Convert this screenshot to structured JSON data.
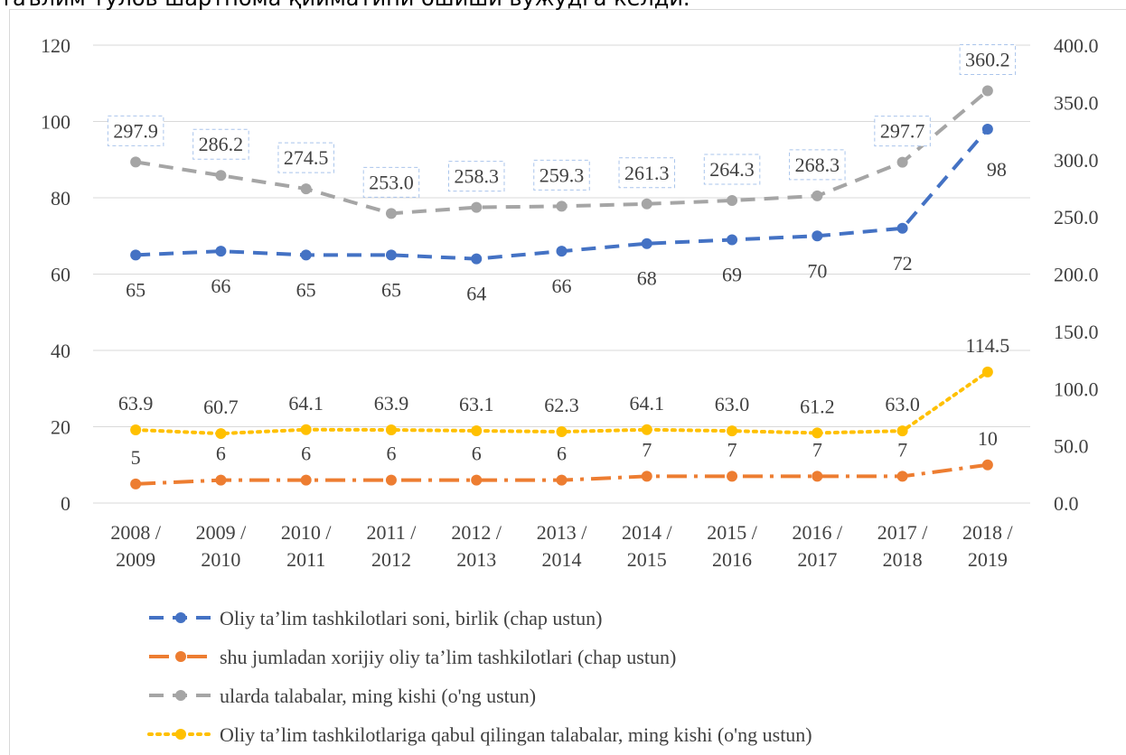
{
  "caption": "таълим тулов шартнома қийматини ошиши вужудга келди.",
  "chart_data": {
    "type": "line",
    "categories": [
      "2008 / 2009",
      "2009 / 2010",
      "2010 / 2011",
      "2011 / 2012",
      "2012 / 2013",
      "2013 / 2014",
      "2014 / 2015",
      "2015 / 2016",
      "2016 / 2017",
      "2017 / 2018",
      "2018 / 2019"
    ],
    "ylim": [
      0,
      120
    ],
    "yticks": [
      0,
      20,
      40,
      60,
      80,
      100,
      120
    ],
    "y2lim": [
      0,
      400
    ],
    "y2ticks": [
      {
        "value": 0,
        "label": "0.0"
      },
      {
        "value": 50,
        "label": "50.0"
      },
      {
        "value": 100,
        "label": "100.0"
      },
      {
        "value": 150,
        "label": "150.0"
      },
      {
        "value": 200,
        "label": "200.0"
      },
      {
        "value": 250,
        "label": "250.0"
      },
      {
        "value": 300,
        "label": "300.0"
      },
      {
        "value": 350,
        "label": "350.0"
      },
      {
        "value": 400,
        "label": "400.0"
      }
    ],
    "grid": true,
    "series": [
      {
        "name": "Oliy ta’lim tashkilotlari soni, birlik (chap ustun)",
        "color": "#4472c4",
        "dash": "dash",
        "label_pos": "below",
        "values": [
          65,
          66,
          65,
          65,
          64,
          66,
          68,
          69,
          70,
          72,
          98
        ]
      },
      {
        "name": "shu jumladan xorijiy oliy ta’lim tashkilotlari (chap ustun)",
        "color": "#ed7d31",
        "dash": "dashdot",
        "label_pos": "above",
        "values": [
          5,
          6,
          6,
          6,
          6,
          6,
          7,
          7,
          7,
          7,
          10
        ]
      },
      {
        "name": "ularda talabalar, ming kishi (o'ng ustun)",
        "color": "#a5a5a5",
        "dash": "dash",
        "label_pos": "above-box",
        "axis": "y2",
        "values": [
          297.9,
          286.2,
          274.5,
          253.0,
          258.3,
          259.3,
          261.3,
          264.3,
          268.3,
          297.7,
          360.2
        ],
        "value_labels": [
          "297.9",
          "286.2",
          "274.5",
          "253.0",
          "258.3",
          "259.3",
          "261.3",
          "264.3",
          "268.3",
          "297.7",
          "360.2"
        ]
      },
      {
        "name": "Oliy ta’lim tashkilotlariga qabul qilingan talabalar, ming kishi (o'ng ustun)",
        "color": "#ffc000",
        "dash": "dot",
        "label_pos": "above",
        "axis": "y2",
        "values": [
          63.9,
          60.7,
          64.1,
          63.9,
          63.1,
          62.3,
          64.1,
          63.0,
          61.2,
          63.0,
          114.5
        ],
        "value_labels": [
          "63.9",
          "60.7",
          "64.1",
          "63.9",
          "63.1",
          "62.3",
          "64.1",
          "63.0",
          "61.2",
          "63.0",
          "114.5"
        ]
      }
    ]
  }
}
